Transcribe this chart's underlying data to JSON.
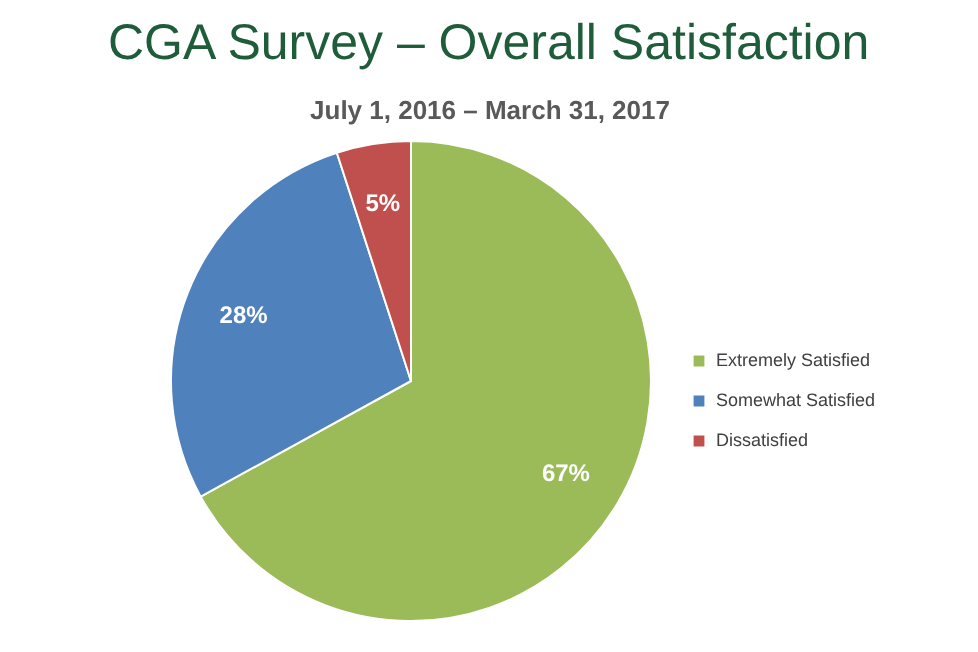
{
  "chart_data": {
    "type": "pie",
    "title": "CGA Survey – Overall Satisfaction",
    "subtitle": "July 1, 2016 – March 31, 2017",
    "categories": [
      "Extremely Satisfied",
      "Somewhat Satisfied",
      "Dissatisfied"
    ],
    "values": [
      67,
      28,
      5
    ],
    "colors": [
      "#9bbb59",
      "#4f81bd",
      "#c0504d"
    ],
    "value_labels": [
      "67%",
      "28%",
      "5%"
    ],
    "legend": "right"
  }
}
